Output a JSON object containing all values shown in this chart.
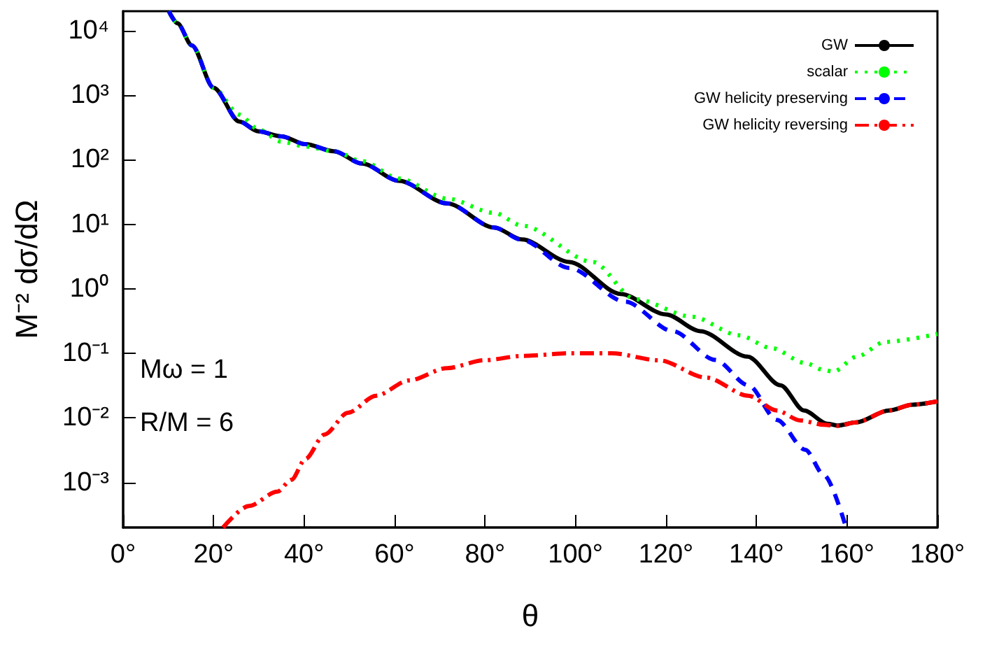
{
  "chart_data": {
    "type": "line",
    "xlabel": "θ",
    "ylabel": "M⁻² dσ/dΩ",
    "annotations": [
      "Mω = 1",
      "R/M = 6"
    ],
    "log": "y",
    "grid": false,
    "legend": "top right",
    "marker": "none",
    "xlim": [
      0,
      180
    ],
    "xticks": [
      {
        "value": 0,
        "label": "0°"
      },
      {
        "value": 20,
        "label": "20°"
      },
      {
        "value": 40,
        "label": "40°"
      },
      {
        "value": 60,
        "label": "60°"
      },
      {
        "value": 80,
        "label": "80°"
      },
      {
        "value": 100,
        "label": "100°"
      },
      {
        "value": 120,
        "label": "120°"
      },
      {
        "value": 140,
        "label": "140°"
      },
      {
        "value": 160,
        "label": "160°"
      },
      {
        "value": 180,
        "label": "180°"
      }
    ],
    "ylim": [
      0.0002,
      20000
    ],
    "yticks": [
      {
        "value": 0.001,
        "label": "10⁻³"
      },
      {
        "value": 0.01,
        "label": "10⁻²"
      },
      {
        "value": 0.1,
        "label": "10⁻¹"
      },
      {
        "value": 1,
        "label": "10⁰"
      },
      {
        "value": 10,
        "label": "10¹"
      },
      {
        "value": 100,
        "label": "10²"
      },
      {
        "value": 1000,
        "label": "10³"
      },
      {
        "value": 10000,
        "label": "10⁴"
      }
    ],
    "series": [
      {
        "name": "GW",
        "color": "#000000",
        "line_style": "solid",
        "x": [
          10.1,
          12,
          15.2,
          20,
          25.7,
          29.9,
          35,
          40.3,
          46.6,
          52.8,
          61,
          71.6,
          82,
          88.2,
          98.6,
          110,
          120,
          127.6,
          138,
          145.3,
          150.5,
          155.7,
          158,
          162,
          169.3,
          174.5,
          180
        ],
        "values": [
          20000,
          13000,
          5900,
          1300,
          390,
          275,
          230,
          174,
          135,
          87,
          47,
          21,
          8.9,
          5.8,
          2.6,
          0.83,
          0.4,
          0.22,
          0.089,
          0.032,
          0.013,
          0.0081,
          0.0076,
          0.0085,
          0.013,
          0.016,
          0.018
        ]
      },
      {
        "name": "scalar",
        "color": "#00ff00",
        "line_style": "dotted",
        "x": [
          10.1,
          12,
          15.2,
          20,
          25.7,
          29.9,
          35,
          40.3,
          46.6,
          52.8,
          61,
          71.6,
          82,
          88.2,
          103.8,
          113.2,
          125.7,
          136.1,
          143.4,
          150.7,
          154.9,
          157,
          162.2,
          168.4,
          180
        ],
        "values": [
          20000,
          13000,
          5900,
          1300,
          500,
          295,
          190,
          160,
          135,
          95,
          51,
          25,
          15,
          9.5,
          2.6,
          0.69,
          0.37,
          0.19,
          0.12,
          0.071,
          0.055,
          0.052,
          0.089,
          0.15,
          0.2
        ]
      },
      {
        "name": "GW helicity preserving",
        "color": "#0000ff",
        "line_style": "dashed",
        "x": [
          10.1,
          12,
          15.2,
          20,
          25.7,
          29.9,
          35,
          40.3,
          46.6,
          52.8,
          61,
          71.6,
          82,
          88.2,
          98.6,
          111,
          121.5,
          130.9,
          138.2,
          144.5,
          150.8,
          154.9,
          159.8
        ],
        "values": [
          20000,
          13000,
          5900,
          1300,
          390,
          275,
          230,
          174,
          135,
          87,
          47,
          21,
          8.9,
          5.7,
          2.1,
          0.63,
          0.22,
          0.079,
          0.032,
          0.0093,
          0.0032,
          0.0013,
          0.0002
        ]
      },
      {
        "name": "GW helicity reversing",
        "color": "#ff0000",
        "line_style": "dashdot",
        "x": [
          22.1,
          27.8,
          34.1,
          37.2,
          40.3,
          44.5,
          49.7,
          55.9,
          63.2,
          71.6,
          79.9,
          88.2,
          98.6,
          108,
          118.4,
          128.9,
          138.2,
          144.5,
          149.7,
          155,
          158,
          162,
          169.3,
          174.5,
          180
        ],
        "values": [
          0.0002,
          0.00043,
          0.00072,
          0.0011,
          0.0023,
          0.0055,
          0.012,
          0.022,
          0.038,
          0.059,
          0.078,
          0.091,
          0.1,
          0.1,
          0.078,
          0.042,
          0.022,
          0.013,
          0.0091,
          0.0078,
          0.0075,
          0.0085,
          0.013,
          0.016,
          0.018
        ]
      }
    ]
  }
}
